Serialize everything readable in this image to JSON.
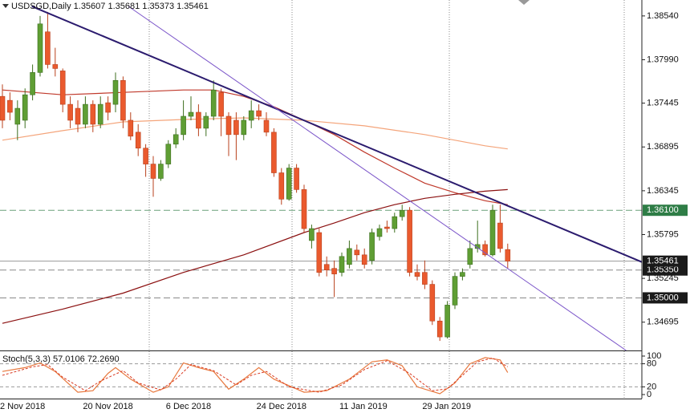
{
  "chart_data": {
    "type": "candlestick",
    "symbol": "USDSGD,Daily",
    "categories": [
      "2 Nov 2018",
      null,
      null,
      null,
      null,
      null,
      null,
      null,
      null,
      null,
      null,
      "20 Nov 2018",
      null,
      null,
      null,
      null,
      null,
      null,
      null,
      null,
      null,
      null,
      "6 Dec 2018",
      null,
      null,
      null,
      null,
      null,
      null,
      null,
      null,
      null,
      null,
      null,
      "24 Dec 2018",
      null,
      null,
      null,
      null,
      null,
      null,
      null,
      null,
      null,
      null,
      "11 Jan 2019",
      null,
      null,
      null,
      null,
      null,
      null,
      null,
      null,
      null,
      null,
      "29 Jan 2019",
      null,
      null,
      null,
      null,
      null,
      null,
      null,
      null,
      null,
      null,
      null
    ],
    "open": [
      1.3753,
      1.3748,
      1.3718,
      1.3723,
      1.3755,
      1.3783,
      1.3834,
      1.3793,
      1.3785,
      1.3743,
      1.3738,
      1.3718,
      1.3743,
      1.3718,
      1.3745,
      1.3743,
      1.3773,
      1.3723,
      1.3708,
      1.3688,
      1.3668,
      1.365,
      1.3668,
      1.3693,
      1.3705,
      1.3728,
      1.3733,
      1.3713,
      1.3728,
      1.3758,
      1.3728,
      1.3723,
      1.3705,
      1.3723,
      1.3735,
      1.3723,
      1.3708,
      1.3657,
      1.3624,
      1.3663,
      1.3636,
      1.3572,
      1.3582,
      1.3542,
      1.3537,
      1.3532,
      1.3542,
      1.356,
      1.3554,
      1.3547,
      1.3577,
      1.3589,
      1.3587,
      1.3602,
      1.361,
      1.3532,
      1.3532,
      1.3517,
      1.3471,
      1.3451,
      1.3491,
      1.3527,
      1.3542,
      1.3562,
      1.3567,
      1.3554,
      1.3594,
      1.35607
    ],
    "high": [
      1.3768,
      1.3758,
      1.3748,
      1.3763,
      1.3793,
      1.3854,
      1.3859,
      1.3814,
      1.3788,
      1.3753,
      1.3748,
      1.3753,
      1.3748,
      1.3753,
      1.3753,
      1.3783,
      1.3778,
      1.3733,
      1.3718,
      1.3693,
      1.3678,
      1.3673,
      1.3698,
      1.3713,
      1.3748,
      1.3753,
      1.3743,
      1.3733,
      1.3773,
      1.3763,
      1.3733,
      1.3733,
      1.3728,
      1.3748,
      1.3743,
      1.3733,
      1.3713,
      1.3663,
      1.3668,
      1.3668,
      1.3642,
      1.3592,
      1.3587,
      1.3552,
      1.3547,
      1.3557,
      1.3572,
      1.3567,
      1.3562,
      1.3587,
      1.3592,
      1.3597,
      1.3607,
      1.3617,
      1.3614,
      1.3542,
      1.3547,
      1.3522,
      1.3476,
      1.3496,
      1.3532,
      1.3537,
      1.3572,
      1.3597,
      1.3572,
      1.3617,
      1.3617,
      1.35681
    ],
    "low": [
      1.3713,
      1.3723,
      1.3698,
      1.3713,
      1.3748,
      1.3778,
      1.3788,
      1.3778,
      1.3733,
      1.3713,
      1.3708,
      1.3713,
      1.3708,
      1.3713,
      1.3723,
      1.3733,
      1.3713,
      1.3698,
      1.3678,
      1.3652,
      1.3627,
      1.3647,
      1.3663,
      1.3688,
      1.3698,
      1.3723,
      1.3703,
      1.3703,
      1.3723,
      1.3703,
      1.3678,
      1.3673,
      1.3698,
      1.3713,
      1.3723,
      1.3703,
      1.3652,
      1.3617,
      1.3622,
      1.3632,
      1.3582,
      1.3562,
      1.3527,
      1.3527,
      1.3501,
      1.3527,
      1.3537,
      1.3547,
      1.3537,
      1.3542,
      1.3572,
      1.3582,
      1.3582,
      1.3597,
      1.3527,
      1.3522,
      1.3511,
      1.3466,
      1.3446,
      1.3449,
      1.3486,
      1.3522,
      1.3537,
      1.3557,
      1.3552,
      1.3552,
      1.3557,
      1.35373
    ],
    "close": [
      1.3723,
      1.3733,
      1.3738,
      1.3755,
      1.3783,
      1.3844,
      1.3793,
      1.3788,
      1.3743,
      1.3723,
      1.3718,
      1.3743,
      1.3718,
      1.3743,
      1.3733,
      1.3773,
      1.3723,
      1.3703,
      1.3688,
      1.3668,
      1.365,
      1.3668,
      1.3693,
      1.3705,
      1.3728,
      1.3733,
      1.3713,
      1.3728,
      1.3761,
      1.3728,
      1.3705,
      1.3705,
      1.3723,
      1.3735,
      1.3728,
      1.3708,
      1.3657,
      1.3624,
      1.3663,
      1.3636,
      1.3587,
      1.3587,
      1.3532,
      1.3535,
      1.353,
      1.3552,
      1.3562,
      1.3554,
      1.3542,
      1.3582,
      1.3587,
      1.3587,
      1.3602,
      1.361,
      1.3532,
      1.3527,
      1.3517,
      1.3471,
      1.3451,
      1.3491,
      1.3527,
      1.3532,
      1.3562,
      1.3567,
      1.3554,
      1.361,
      1.3562,
      1.35461
    ],
    "up_color": "#5f9e34",
    "down_color": "#ea5a2e",
    "ylim": [
      1.3434,
      1.3874
    ],
    "yticks": [
      {
        "value": 1.3854,
        "label": "1.38540"
      },
      {
        "value": 1.3799,
        "label": "1.37990"
      },
      1.37445,
      1.36895,
      1.36345,
      1.35795,
      1.35245,
      1.34695
    ],
    "levels": [
      {
        "value": 1.361,
        "label": "1.36100",
        "color": "#2e7d46",
        "style": "dashed"
      },
      {
        "value": 1.3535,
        "label": "1.35350",
        "color": "#1a1a1a",
        "style": "dashed"
      },
      {
        "value": 1.35,
        "label": "1.35000",
        "color": "#1a1a1a",
        "style": "dashed"
      }
    ],
    "current_price_color": "#1a1a1a",
    "overlays": [
      {
        "color": "#f4a47a",
        "x": [
          0,
          8,
          16,
          24,
          32,
          40,
          48,
          56,
          64,
          67
        ],
        "values": [
          1.3698,
          1.371,
          1.3721,
          1.3724,
          1.3726,
          1.3723,
          1.3716,
          1.3705,
          1.3691,
          1.3687
        ]
      },
      {
        "color": "#c0392b",
        "x": [
          0,
          8,
          16,
          24,
          28,
          32,
          36,
          40,
          44,
          48,
          52,
          56,
          60,
          64,
          67
        ],
        "values": [
          1.3761,
          1.3755,
          1.3758,
          1.3761,
          1.3761,
          1.3753,
          1.374,
          1.3723,
          1.3705,
          1.3683,
          1.3663,
          1.3644,
          1.3632,
          1.3622,
          1.3617
        ]
      },
      {
        "color": "#8b1010",
        "x": [
          0,
          8,
          16,
          24,
          32,
          40,
          44,
          48,
          52,
          56,
          60,
          64,
          67
        ],
        "values": [
          1.3468,
          1.3486,
          1.3506,
          1.3532,
          1.3554,
          1.3582,
          1.3594,
          1.3607,
          1.3617,
          1.3625,
          1.363,
          1.3634,
          1.3636
        ]
      }
    ],
    "trendlines": [
      {
        "color": "#2b1b6e",
        "width": 2,
        "x": [
          3.9,
          84.8
        ],
        "values": [
          1.3866,
          1.3545
        ]
      },
      {
        "color": "#7b55c9",
        "width": 1,
        "x": [
          16.7,
          82.7
        ],
        "values": [
          1.3866,
          1.3434
        ]
      }
    ],
    "stoch": {
      "title": "Stoch(5,3,3)",
      "ylim": [
        0,
        100
      ],
      "yticks": [
        0,
        20,
        80,
        100
      ],
      "levels": [
        20,
        80
      ],
      "main": {
        "color": "#e8793e",
        "x": [
          0,
          3,
          5,
          7,
          10,
          12,
          14,
          15,
          17,
          20,
          22,
          24,
          26,
          28,
          30,
          32,
          34,
          36,
          40,
          43,
          46,
          49,
          51,
          53,
          55,
          58,
          60,
          62,
          64,
          66,
          67
        ],
        "values": [
          60,
          70,
          82,
          60,
          6,
          10,
          55,
          70,
          40,
          6,
          20,
          82,
          70,
          60,
          14,
          40,
          70,
          40,
          6,
          10,
          40,
          85,
          90,
          75,
          20,
          2,
          30,
          80,
          96,
          90,
          57.0106
        ]
      },
      "signal": {
        "color": "#d93a22",
        "x": [
          0,
          4,
          6,
          8,
          11,
          13,
          16,
          18,
          21,
          23,
          25,
          28,
          31,
          33,
          35,
          38,
          42,
          45,
          48,
          51,
          54,
          57,
          59,
          61,
          63,
          65,
          67
        ],
        "values": [
          50,
          72,
          78,
          45,
          10,
          35,
          62,
          30,
          12,
          40,
          78,
          62,
          25,
          50,
          60,
          20,
          6,
          25,
          65,
          88,
          55,
          10,
          15,
          50,
          85,
          95,
          72.269
        ],
        "last_label": "72.2690"
      }
    }
  }
}
